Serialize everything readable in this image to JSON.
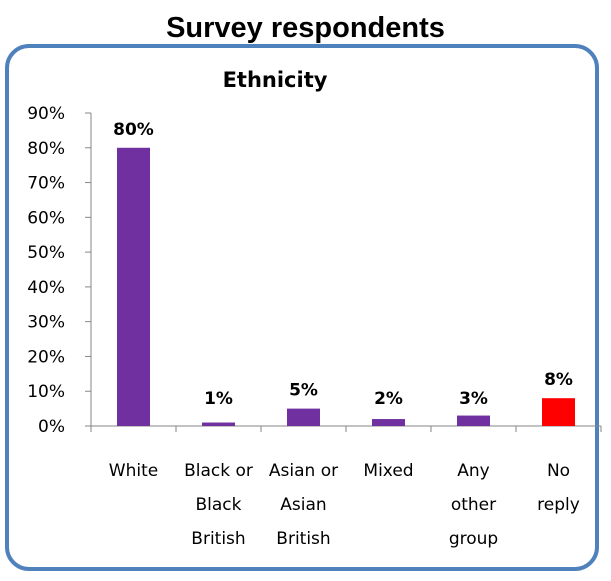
{
  "page": {
    "title": "Survey respondents"
  },
  "chart_data": {
    "type": "bar",
    "title": "Ethnicity",
    "categories": [
      [
        "White"
      ],
      [
        "Black or",
        "Black",
        "British"
      ],
      [
        "Asian or",
        "Asian",
        "British"
      ],
      [
        "Mixed"
      ],
      [
        "Any",
        "other",
        "group"
      ],
      [
        "No",
        "reply"
      ]
    ],
    "values": [
      80,
      1,
      5,
      2,
      3,
      8
    ],
    "data_labels": [
      "80%",
      "1%",
      "5%",
      "2%",
      "3%",
      "8%"
    ],
    "colors": [
      "#7030a0",
      "#7030a0",
      "#7030a0",
      "#7030a0",
      "#7030a0",
      "#ff0000"
    ],
    "ylim": [
      0,
      90
    ],
    "yticks": [
      "0%",
      "10%",
      "20%",
      "30%",
      "40%",
      "50%",
      "60%",
      "70%",
      "80%",
      "90%"
    ],
    "grid": false,
    "legend": "none"
  }
}
